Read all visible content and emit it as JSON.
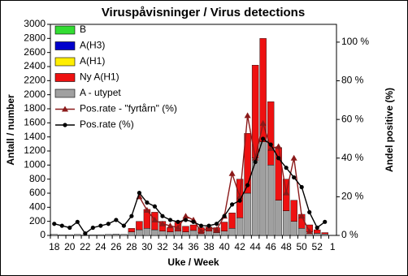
{
  "chart_data": {
    "type": "bar",
    "title": "Viruspåvisninger / Virus detections",
    "x_label": "Uke / Week",
    "y_label": "Antall / number",
    "y2_label": "Andel positive (%)",
    "categories": [
      "18",
      null,
      "20",
      null,
      "22",
      null,
      "24",
      null,
      "26",
      null,
      "28",
      null,
      "30",
      null,
      "32",
      null,
      "34",
      null,
      "36",
      null,
      "38",
      null,
      "40",
      null,
      "42",
      null,
      "44",
      null,
      "46",
      null,
      "48",
      null,
      "50",
      null,
      "52",
      null,
      "1"
    ],
    "ylim": [
      0,
      3000
    ],
    "yticks": [
      0,
      200,
      400,
      600,
      800,
      1000,
      1200,
      1400,
      1600,
      1800,
      2000,
      2200,
      2400,
      2600,
      2800,
      3000
    ],
    "y2lim": [
      0,
      109.2
    ],
    "y2ticks": [
      {
        "value": 0,
        "label": "0 %"
      },
      {
        "value": 20,
        "label": "20 %"
      },
      {
        "value": 40,
        "label": "40 %"
      },
      {
        "value": 60,
        "label": "60 %"
      },
      {
        "value": 80,
        "label": "80 %"
      },
      {
        "value": 100,
        "label": "100 %"
      }
    ],
    "series": [
      {
        "name": "B",
        "type": "bar",
        "color": "#33dd33",
        "values": [
          0,
          0,
          0,
          0,
          0,
          0,
          0,
          0,
          0,
          0,
          0,
          0,
          0,
          0,
          0,
          0,
          0,
          0,
          0,
          0,
          0,
          0,
          0,
          0,
          0,
          0,
          0,
          0,
          0,
          0,
          0,
          0,
          0,
          0,
          0,
          0,
          0
        ]
      },
      {
        "name": "A(H3)",
        "type": "bar",
        "color": "#0000cc",
        "values": [
          0,
          0,
          0,
          0,
          0,
          0,
          0,
          0,
          0,
          0,
          0,
          0,
          0,
          0,
          0,
          0,
          0,
          0,
          0,
          0,
          0,
          0,
          0,
          0,
          0,
          0,
          0,
          0,
          0,
          0,
          0,
          0,
          0,
          0,
          0,
          0,
          0
        ]
      },
      {
        "name": "A(H1)",
        "type": "bar",
        "color": "#ffee00",
        "values": [
          0,
          0,
          0,
          0,
          0,
          0,
          0,
          0,
          0,
          0,
          0,
          0,
          0,
          0,
          0,
          0,
          0,
          0,
          0,
          0,
          0,
          0,
          0,
          0,
          0,
          0,
          0,
          0,
          0,
          0,
          0,
          0,
          0,
          0,
          0,
          0,
          0
        ]
      },
      {
        "name": "Ny A(H1)",
        "type": "bar",
        "color": "#ee1111",
        "values": [
          0,
          0,
          0,
          0,
          0,
          0,
          0,
          0,
          0,
          0,
          50,
          120,
          270,
          250,
          140,
          60,
          130,
          80,
          80,
          70,
          60,
          70,
          130,
          220,
          550,
          850,
          1320,
          1470,
          900,
          750,
          450,
          300,
          200,
          100,
          50,
          20,
          0
        ]
      },
      {
        "name": "A - utypet",
        "type": "bar",
        "color": "#a0a0a0",
        "values": [
          15,
          10,
          10,
          15,
          5,
          10,
          10,
          15,
          20,
          15,
          50,
          80,
          100,
          80,
          60,
          50,
          60,
          50,
          70,
          40,
          60,
          40,
          60,
          100,
          250,
          600,
          1100,
          1330,
          1000,
          500,
          350,
          200,
          100,
          50,
          30,
          20,
          0
        ]
      },
      {
        "name": "Pos.rate - \"fyrtårn\" (%)",
        "type": "line",
        "marker": "triangle",
        "axis": "y2",
        "color": "#8b1a1a",
        "values": [
          null,
          null,
          null,
          null,
          null,
          null,
          null,
          null,
          null,
          null,
          null,
          20,
          13,
          8,
          6,
          5,
          4,
          10,
          8,
          2,
          4,
          3,
          10,
          32,
          20,
          62,
          40,
          58,
          45,
          46,
          22,
          40,
          10,
          2,
          null,
          null,
          null
        ]
      },
      {
        "name": "Pos.rate (%)",
        "type": "line",
        "marker": "circle",
        "axis": "y2",
        "color": "#000000",
        "values": [
          6,
          5,
          4,
          7,
          1,
          4,
          5,
          6,
          8,
          5,
          10,
          22,
          17,
          15,
          10,
          8,
          7,
          8,
          7,
          5,
          5,
          6,
          10,
          16,
          18,
          26,
          38,
          50,
          47,
          40,
          35,
          30,
          25,
          12,
          4,
          7,
          null
        ]
      }
    ]
  }
}
